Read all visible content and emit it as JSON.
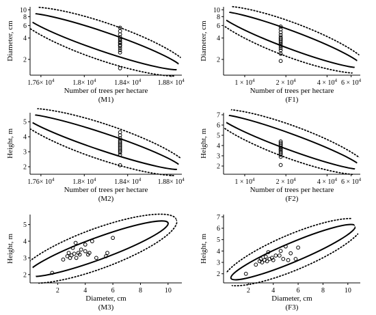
{
  "chart_data": [
    {
      "type": "scatter",
      "panel_label": "(M1)",
      "xlabel": "Number of trees per hectare",
      "ylabel": "Diameter, cm",
      "x_scale": "linear",
      "y_scale": "log",
      "xlim": [
        17500,
        18900
      ],
      "ylim": [
        1.2,
        11
      ],
      "x_ticks": [
        17600,
        18000,
        18400,
        18800
      ],
      "x_tick_labels": [
        [
          "1.76",
          "4"
        ],
        [
          "1.8",
          "4"
        ],
        [
          "1.84",
          "4"
        ],
        [
          "1.88",
          "4"
        ]
      ],
      "y_ticks": [
        2,
        4,
        6,
        8,
        10
      ],
      "y_tick_labels": [
        "2",
        "4",
        "6",
        "8",
        "10"
      ],
      "points_x": 18330,
      "points_y": [
        1.5,
        2.5,
        2.7,
        2.9,
        3.1,
        3.2,
        3.4,
        3.5,
        3.7,
        3.9,
        4.1,
        4.5,
        5.0,
        5.6
      ],
      "ellipse": {
        "from": [
          17450,
          8.5
        ],
        "to": [
          18900,
          1.5
        ],
        "half_width": 0.14
      },
      "band_gap": 0.015
    },
    {
      "type": "scatter",
      "panel_label": "(F1)",
      "xlabel": "Number of trees per hectare",
      "ylabel": "Diameter, cm",
      "x_scale": "log",
      "y_scale": "log",
      "xlim": [
        7000,
        70000
      ],
      "ylim": [
        1.2,
        11
      ],
      "x_ticks": [
        10000,
        20000,
        40000,
        60000
      ],
      "x_tick_labels": [
        [
          "1 ",
          "4"
        ],
        [
          "2 ",
          "4"
        ],
        [
          "4 ",
          "4"
        ],
        [
          "6 ",
          "4"
        ]
      ],
      "y_ticks": [
        2,
        4,
        6,
        8,
        10
      ],
      "y_tick_labels": [
        "2",
        "4",
        "6",
        "8",
        "10"
      ],
      "points_x": 18330,
      "points_y": [
        1.9,
        2.4,
        2.7,
        2.9,
        3.1,
        3.3,
        3.5,
        3.7,
        3.9,
        4.1,
        4.4,
        4.8,
        5.3,
        5.8
      ],
      "ellipse": {
        "from": [
          6500,
          9.0
        ],
        "to": [
          72000,
          1.6
        ],
        "half_width": 0.13
      },
      "band_gap": 0.015
    },
    {
      "type": "scatter",
      "panel_label": "(M2)",
      "xlabel": "Number of trees per hectare",
      "ylabel": "Height, m",
      "x_scale": "linear",
      "y_scale": "linear",
      "xlim": [
        17500,
        18900
      ],
      "ylim": [
        1.5,
        5.6
      ],
      "x_ticks": [
        17600,
        18000,
        18400,
        18800
      ],
      "x_tick_labels": [
        [
          "1.76",
          "4"
        ],
        [
          "1.8",
          "4"
        ],
        [
          "1.84",
          "4"
        ],
        [
          "1.88",
          "4"
        ]
      ],
      "y_ticks": [
        2,
        3,
        4,
        5
      ],
      "y_tick_labels": [
        "2",
        "3",
        "4",
        "5"
      ],
      "points_x": 18330,
      "points_y": [
        2.1,
        2.8,
        2.95,
        3.05,
        3.15,
        3.25,
        3.35,
        3.45,
        3.55,
        3.65,
        3.75,
        3.9,
        4.1,
        4.3
      ],
      "ellipse": {
        "from": [
          17450,
          5.4
        ],
        "to": [
          18900,
          1.9
        ],
        "half_width": 0.14
      },
      "band_gap": 0.015
    },
    {
      "type": "scatter",
      "panel_label": "(F2)",
      "xlabel": "Number of trees per hectare",
      "ylabel": "Height, m",
      "x_scale": "log",
      "y_scale": "linear",
      "xlim": [
        7000,
        70000
      ],
      "ylim": [
        1.2,
        7.2
      ],
      "x_ticks": [
        10000,
        20000,
        40000,
        60000
      ],
      "x_tick_labels": [
        [
          "1 ",
          "4"
        ],
        [
          "2 ",
          "4"
        ],
        [
          "4 ",
          "4"
        ],
        [
          "6 ",
          "4"
        ]
      ],
      "y_ticks": [
        2,
        3,
        4,
        5,
        6,
        7
      ],
      "y_tick_labels": [
        "2",
        "3",
        "4",
        "5",
        "6",
        "7"
      ],
      "points_x": 18330,
      "points_y": [
        2.1,
        2.9,
        3.1,
        3.25,
        3.4,
        3.55,
        3.65,
        3.8,
        3.95,
        4.1,
        4.25,
        4.4
      ],
      "ellipse": {
        "from": [
          6500,
          6.9
        ],
        "to": [
          72000,
          1.8
        ],
        "half_width": 0.13
      },
      "band_gap": 0.015
    },
    {
      "type": "scatter",
      "panel_label": "(M3)",
      "xlabel": "Diameter, cm",
      "ylabel": "Height, m",
      "x_scale": "linear",
      "y_scale": "linear",
      "xlim": [
        0,
        11
      ],
      "ylim": [
        1.5,
        5.6
      ],
      "x_ticks": [
        2,
        4,
        6,
        8,
        10
      ],
      "x_tick_labels": [
        "2",
        "4",
        "6",
        "8",
        "10"
      ],
      "y_ticks": [
        2,
        3,
        4,
        5
      ],
      "y_tick_labels": [
        "2",
        "3",
        "4",
        "5"
      ],
      "points": [
        [
          1.6,
          2.1
        ],
        [
          2.4,
          2.9
        ],
        [
          2.7,
          3.1
        ],
        [
          2.8,
          3.3
        ],
        [
          2.9,
          3.0
        ],
        [
          3.0,
          3.15
        ],
        [
          3.1,
          3.6
        ],
        [
          3.2,
          3.25
        ],
        [
          3.3,
          3.9
        ],
        [
          3.35,
          3.0
        ],
        [
          3.5,
          3.3
        ],
        [
          3.6,
          3.2
        ],
        [
          3.7,
          3.5
        ],
        [
          4.0,
          3.4
        ],
        [
          4.0,
          3.8
        ],
        [
          4.2,
          3.2
        ],
        [
          4.3,
          3.3
        ],
        [
          4.5,
          4.0
        ],
        [
          4.8,
          3.0
        ],
        [
          5.5,
          3.1
        ],
        [
          5.6,
          3.3
        ],
        [
          6.0,
          4.2
        ]
      ],
      "ellipse": {
        "from": [
          -0.2,
          2.0
        ],
        "to": [
          10.0,
          5.1
        ],
        "half_width": 0.16
      },
      "band_gap": 0.015
    },
    {
      "type": "scatter",
      "panel_label": "(F3)",
      "xlabel": "Diameter, cm",
      "ylabel": "Height, m",
      "x_scale": "linear",
      "y_scale": "linear",
      "xlim": [
        0,
        11
      ],
      "ylim": [
        1.2,
        7.2
      ],
      "x_ticks": [
        2,
        4,
        6,
        8,
        10
      ],
      "x_tick_labels": [
        "2",
        "4",
        "6",
        "8",
        "10"
      ],
      "y_ticks": [
        2,
        3,
        4,
        5,
        6,
        7
      ],
      "y_tick_labels": [
        "2",
        "3",
        "4",
        "5",
        "6",
        "7"
      ],
      "points": [
        [
          1.8,
          2.0
        ],
        [
          2.6,
          2.8
        ],
        [
          2.9,
          3.1
        ],
        [
          3.0,
          3.3
        ],
        [
          3.1,
          3.0
        ],
        [
          3.3,
          3.2
        ],
        [
          3.4,
          3.5
        ],
        [
          3.5,
          3.1
        ],
        [
          3.6,
          3.9
        ],
        [
          3.7,
          3.3
        ],
        [
          3.9,
          3.4
        ],
        [
          4.0,
          3.2
        ],
        [
          4.2,
          3.6
        ],
        [
          4.5,
          3.6
        ],
        [
          4.6,
          4.0
        ],
        [
          4.8,
          3.3
        ],
        [
          5.0,
          4.4
        ],
        [
          5.2,
          3.2
        ],
        [
          5.4,
          3.8
        ],
        [
          5.8,
          3.3
        ],
        [
          6.0,
          4.3
        ]
      ],
      "ellipse": {
        "from": [
          0.6,
          1.6
        ],
        "to": [
          10.6,
          6.2
        ],
        "half_width": 0.14
      },
      "band_gap": 0.015
    }
  ],
  "x_tick_multiplier": "× 10",
  "style": {
    "ink": "#000000",
    "background": "#ffffff",
    "point_fill": "none"
  }
}
